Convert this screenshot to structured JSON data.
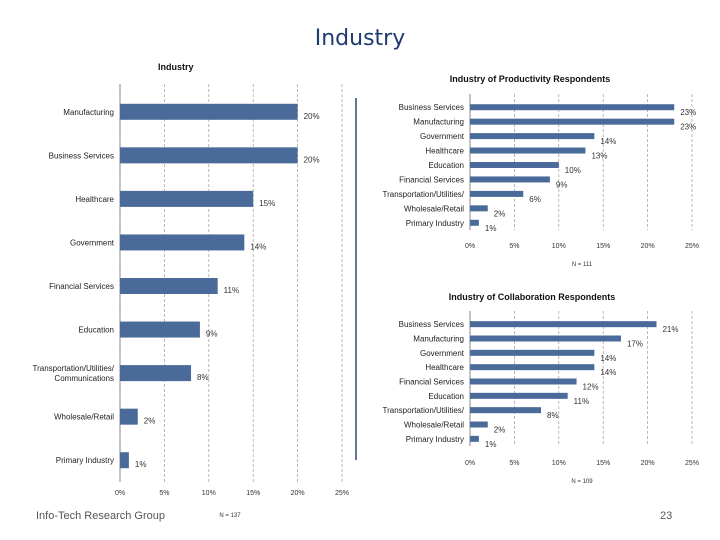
{
  "slide": {
    "title": "Industry",
    "footer_left": "Info-Tech Research Group",
    "page_number": "23"
  },
  "colors": {
    "bar": "#4a6b99",
    "grid": "#9a9a9a",
    "divider": "#2c4a7a"
  },
  "chart_data": [
    {
      "type": "bar",
      "orientation": "horizontal",
      "title": "Industry",
      "categories": [
        "Manufacturing",
        "Business Services",
        "Healthcare",
        "Government",
        "Financial Services",
        "Education",
        "Transportation/Utilities/ Communications",
        "Wholesale/Retail",
        "Primary Industry"
      ],
      "values": [
        20,
        20,
        15,
        14,
        11,
        9,
        8,
        2,
        1
      ],
      "value_labels": [
        "20%",
        "20%",
        "15%",
        "14%",
        "11%",
        "9%",
        "8%",
        "2%",
        "1%"
      ],
      "xlim": [
        0,
        25
      ],
      "xticks": [
        "0%",
        "5%",
        "10%",
        "15%",
        "20%",
        "25%"
      ],
      "grid": "vertical dashed",
      "note": "N = 137"
    },
    {
      "type": "bar",
      "orientation": "horizontal",
      "title": "Industry of Productivity Respondents",
      "categories": [
        "Business Services",
        "Manufacturing",
        "Government",
        "Healthcare",
        "Education",
        "Financial Services",
        "Transportation/Utilities/",
        "Wholesale/Retail",
        "Primary Industry"
      ],
      "values": [
        23,
        23,
        14,
        13,
        10,
        9,
        6,
        2,
        1
      ],
      "value_labels": [
        "23%",
        "23%",
        "14%",
        "13%",
        "10%",
        "9%",
        "6%",
        "2%",
        "1%"
      ],
      "xlim": [
        0,
        25
      ],
      "xticks": [
        "0%",
        "5%",
        "10%",
        "15%",
        "20%",
        "25%"
      ],
      "grid": "vertical dashed",
      "note": "N = 111"
    },
    {
      "type": "bar",
      "orientation": "horizontal",
      "title": "Industry of Collaboration Respondents",
      "categories": [
        "Business Services",
        "Manufacturing",
        "Government",
        "Healthcare",
        "Financial Services",
        "Education",
        "Transportation/Utilities/",
        "Wholesale/Retail",
        "Primary Industry"
      ],
      "values": [
        21,
        17,
        14,
        14,
        12,
        11,
        8,
        2,
        1
      ],
      "value_labels": [
        "21%",
        "17%",
        "14%",
        "14%",
        "12%",
        "11%",
        "8%",
        "2%",
        "1%"
      ],
      "xlim": [
        0,
        25
      ],
      "xticks": [
        "0%",
        "5%",
        "10%",
        "15%",
        "20%",
        "25%"
      ],
      "grid": "vertical dashed",
      "note": "N = 109"
    }
  ]
}
